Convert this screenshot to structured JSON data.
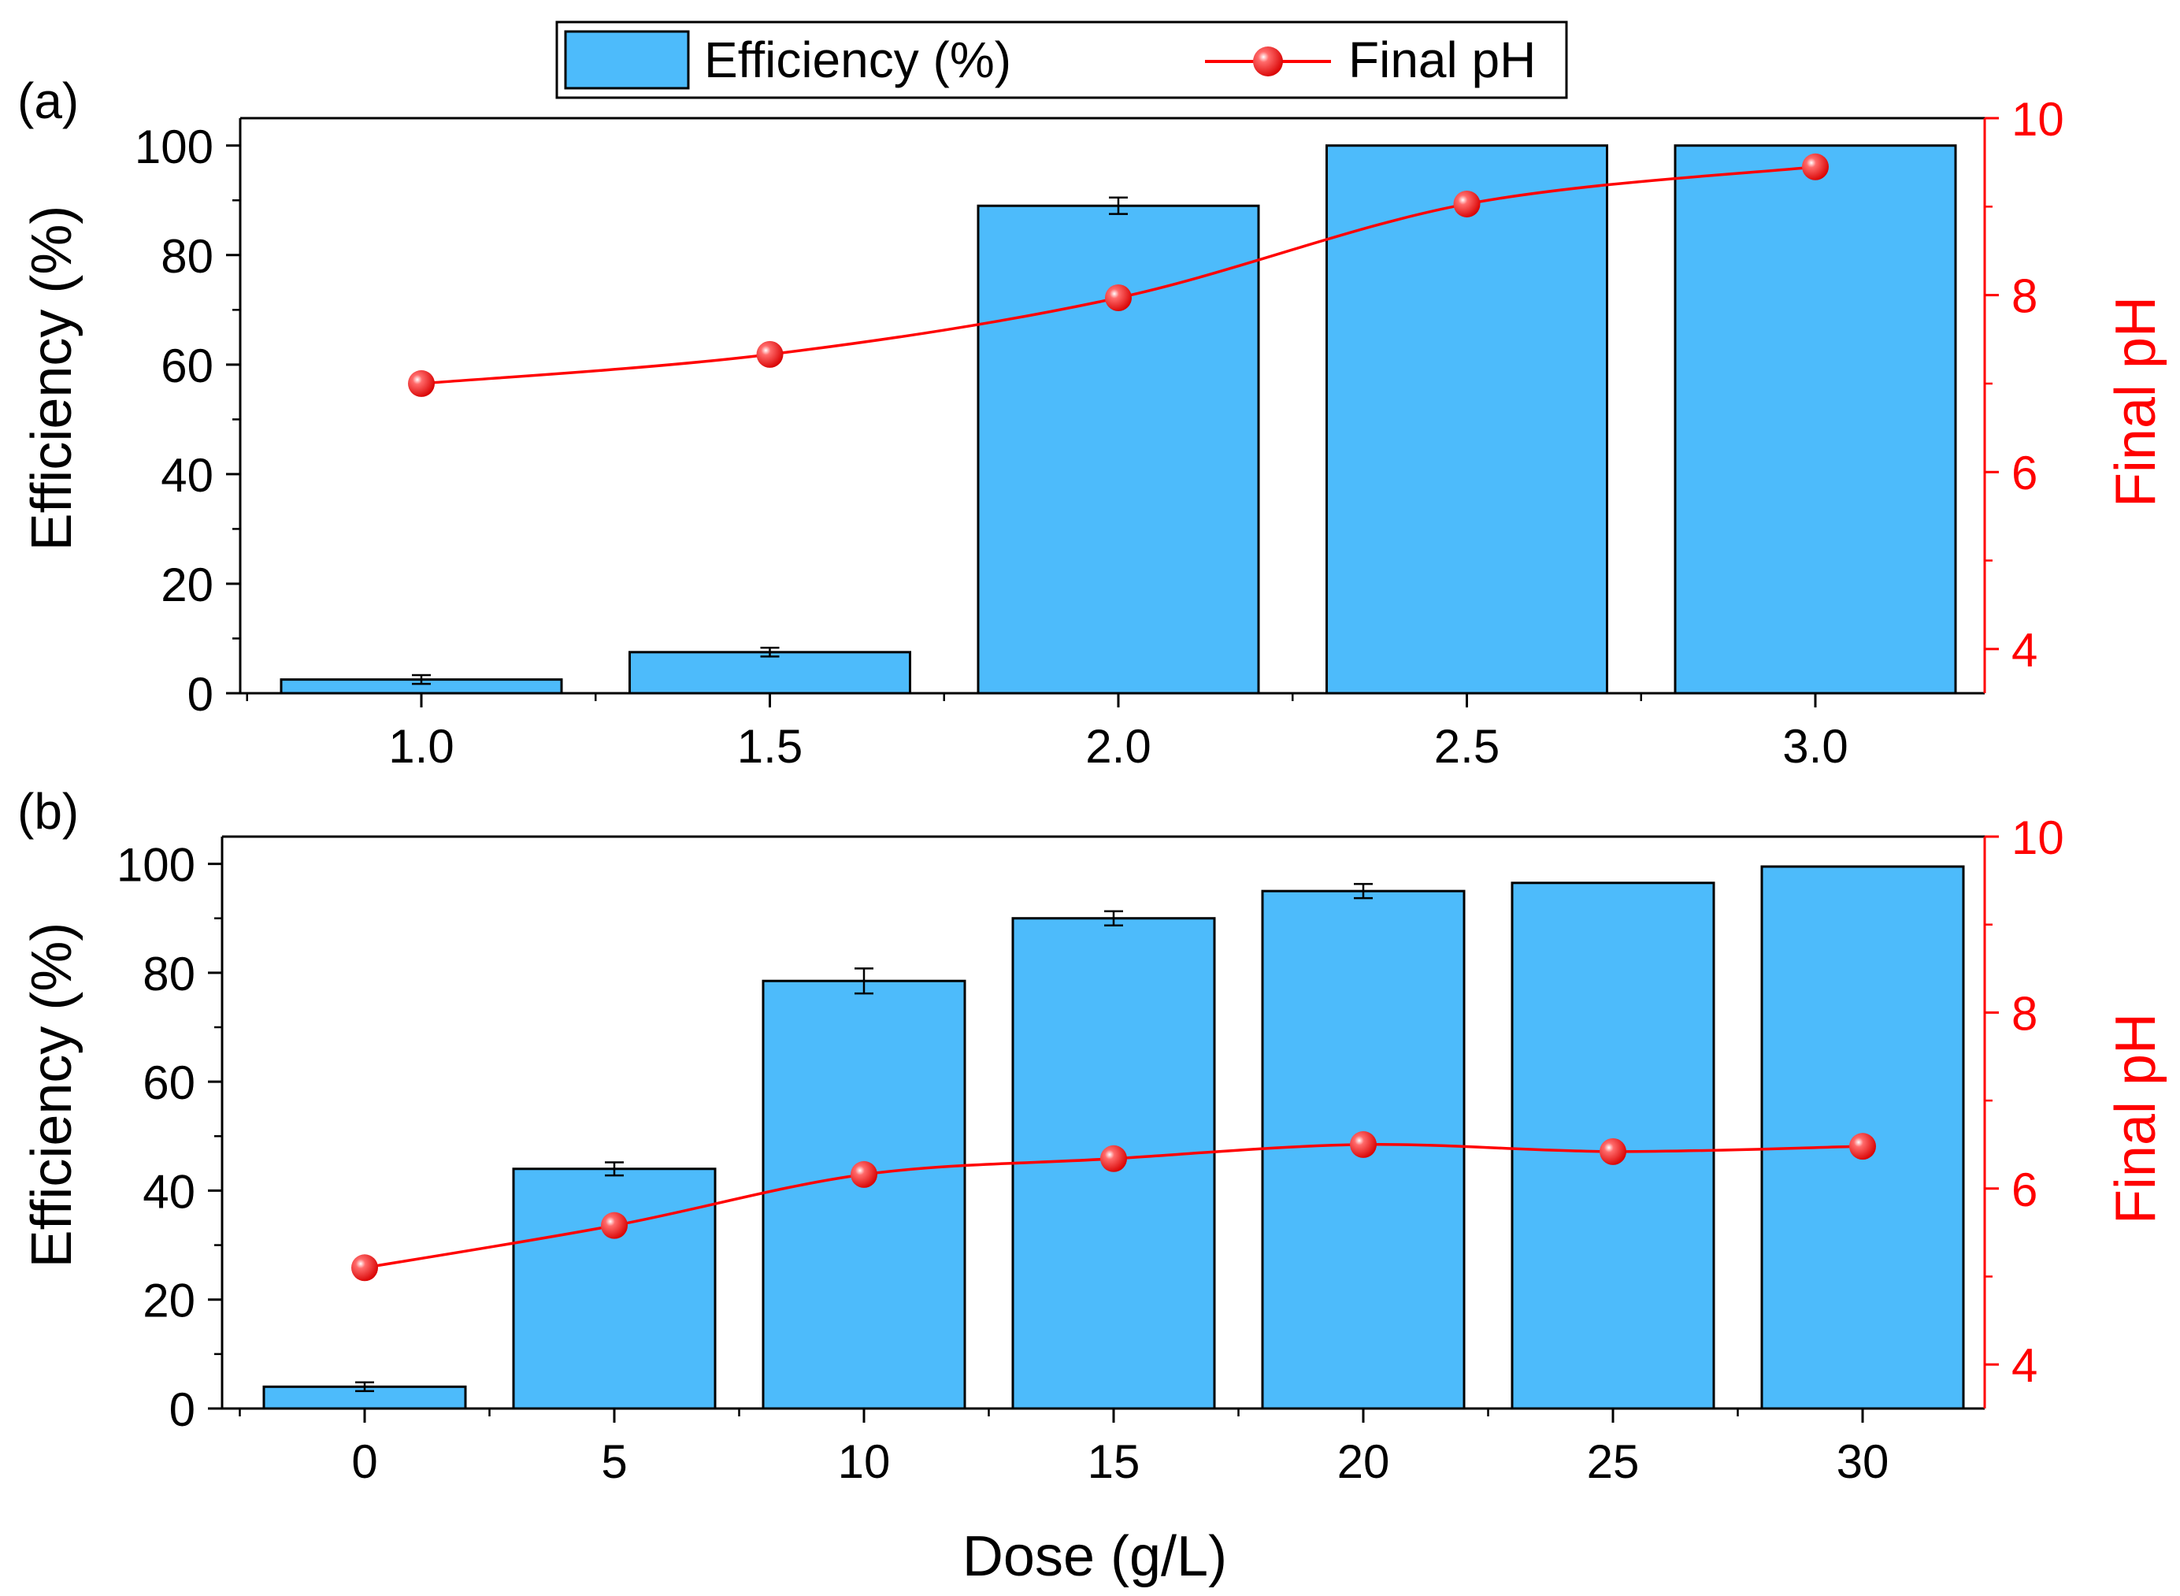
{
  "legend": {
    "bar_label": "Efficiency (%)",
    "line_label": "Final pH"
  },
  "colors": {
    "bar_fill": "#4dbbfb",
    "line": "#ff0000",
    "axis": "#000000",
    "right_axis": "#ff0000"
  },
  "x_axis_shared_label": "Dose (g/L)",
  "chart_data": [
    {
      "panel_label": "(a)",
      "type": "bar",
      "categories": [
        "1.0",
        "1.5",
        "2.0",
        "2.5",
        "3.0"
      ],
      "series": [
        {
          "name": "Efficiency (%)",
          "axis": "left",
          "values": [
            2.5,
            7.5,
            89,
            100,
            100
          ],
          "errors": [
            0.8,
            0.8,
            1.5,
            0,
            0
          ]
        },
        {
          "name": "Final pH",
          "axis": "right",
          "type": "line",
          "values": [
            7.0,
            7.33,
            7.97,
            9.03,
            9.45
          ]
        }
      ],
      "ylabel": "Efficiency (%)",
      "y2label": "Final pH",
      "ylim": [
        0,
        105
      ],
      "y2lim": [
        3.5,
        10
      ],
      "yticks": [
        0,
        20,
        40,
        60,
        80,
        100
      ],
      "y2ticks": [
        4,
        6,
        8,
        10
      ]
    },
    {
      "panel_label": "(b)",
      "type": "bar",
      "categories": [
        "0",
        "5",
        "10",
        "15",
        "20",
        "25",
        "30"
      ],
      "series": [
        {
          "name": "Efficiency (%)",
          "axis": "left",
          "values": [
            4,
            44,
            78.5,
            90,
            95,
            96.5,
            99.5
          ],
          "errors": [
            0.8,
            1.2,
            2.3,
            1.3,
            1.3,
            0,
            0
          ]
        },
        {
          "name": "Final pH",
          "axis": "right",
          "type": "line",
          "values": [
            5.1,
            5.58,
            6.16,
            6.34,
            6.5,
            6.42,
            6.48
          ]
        }
      ],
      "xlabel": "Dose (g/L)",
      "ylabel": "Efficiency (%)",
      "y2label": "Final pH",
      "ylim": [
        0,
        105
      ],
      "y2lim": [
        3.5,
        10
      ],
      "yticks": [
        0,
        20,
        40,
        60,
        80,
        100
      ],
      "y2ticks": [
        4,
        6,
        8,
        10
      ]
    }
  ]
}
